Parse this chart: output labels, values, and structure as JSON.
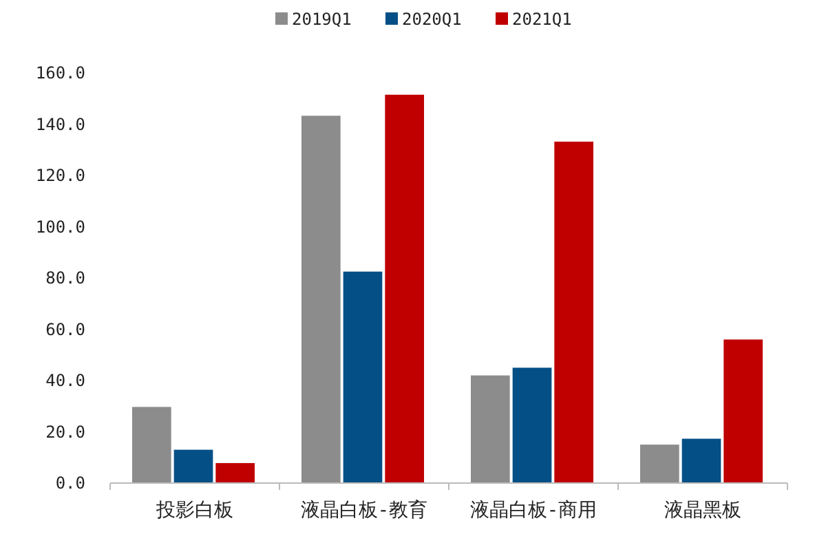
{
  "chart_data": {
    "type": "bar",
    "categories": [
      "投影白板",
      "液晶白板-教育",
      "液晶白板-商用",
      "液晶黑板"
    ],
    "series": [
      {
        "name": "2019Q1",
        "color": "#8c8c8c",
        "values": [
          29.7,
          143.3,
          42,
          15
        ]
      },
      {
        "name": "2020Q1",
        "color": "#044f86",
        "values": [
          13,
          82.5,
          45,
          17.3
        ]
      },
      {
        "name": "2021Q1",
        "color": "#c00000",
        "values": [
          7.8,
          151.5,
          133.2,
          56
        ]
      }
    ],
    "ylim": [
      0,
      160
    ],
    "yticks": [
      {
        "value": 0,
        "label": "0.0"
      },
      {
        "value": 20,
        "label": "20.0"
      },
      {
        "value": 40,
        "label": "40.0"
      },
      {
        "value": 60,
        "label": "60.0"
      },
      {
        "value": 80,
        "label": "80.0"
      },
      {
        "value": 100,
        "label": "100.0"
      },
      {
        "value": 120,
        "label": "120.0"
      },
      {
        "value": 140,
        "label": "140.0"
      },
      {
        "value": 160,
        "label": "160.0"
      }
    ],
    "legend": "top"
  }
}
